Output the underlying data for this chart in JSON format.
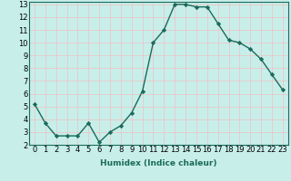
{
  "x": [
    0,
    1,
    2,
    3,
    4,
    5,
    6,
    7,
    8,
    9,
    10,
    11,
    12,
    13,
    14,
    15,
    16,
    17,
    18,
    19,
    20,
    21,
    22,
    23
  ],
  "y": [
    5.2,
    3.7,
    2.7,
    2.7,
    2.7,
    3.7,
    2.2,
    3.0,
    3.5,
    4.5,
    6.2,
    10.0,
    11.0,
    13.0,
    13.0,
    12.8,
    12.8,
    11.5,
    10.2,
    10.0,
    9.5,
    8.7,
    7.5,
    6.3
  ],
  "line_color": "#1a6b5a",
  "marker": "D",
  "marker_size": 2.2,
  "bg_color": "#c8eeea",
  "grid_color": "#e8c8c8",
  "xlabel": "Humidex (Indice chaleur)",
  "xlim": [
    -0.5,
    23.5
  ],
  "ylim": [
    2,
    13.2
  ],
  "yticks": [
    2,
    3,
    4,
    5,
    6,
    7,
    8,
    9,
    10,
    11,
    12,
    13
  ],
  "xticks": [
    0,
    1,
    2,
    3,
    4,
    5,
    6,
    7,
    8,
    9,
    10,
    11,
    12,
    13,
    14,
    15,
    16,
    17,
    18,
    19,
    20,
    21,
    22,
    23
  ],
  "xlabel_fontsize": 6.5,
  "tick_fontsize": 6.0,
  "line_width": 1.0
}
